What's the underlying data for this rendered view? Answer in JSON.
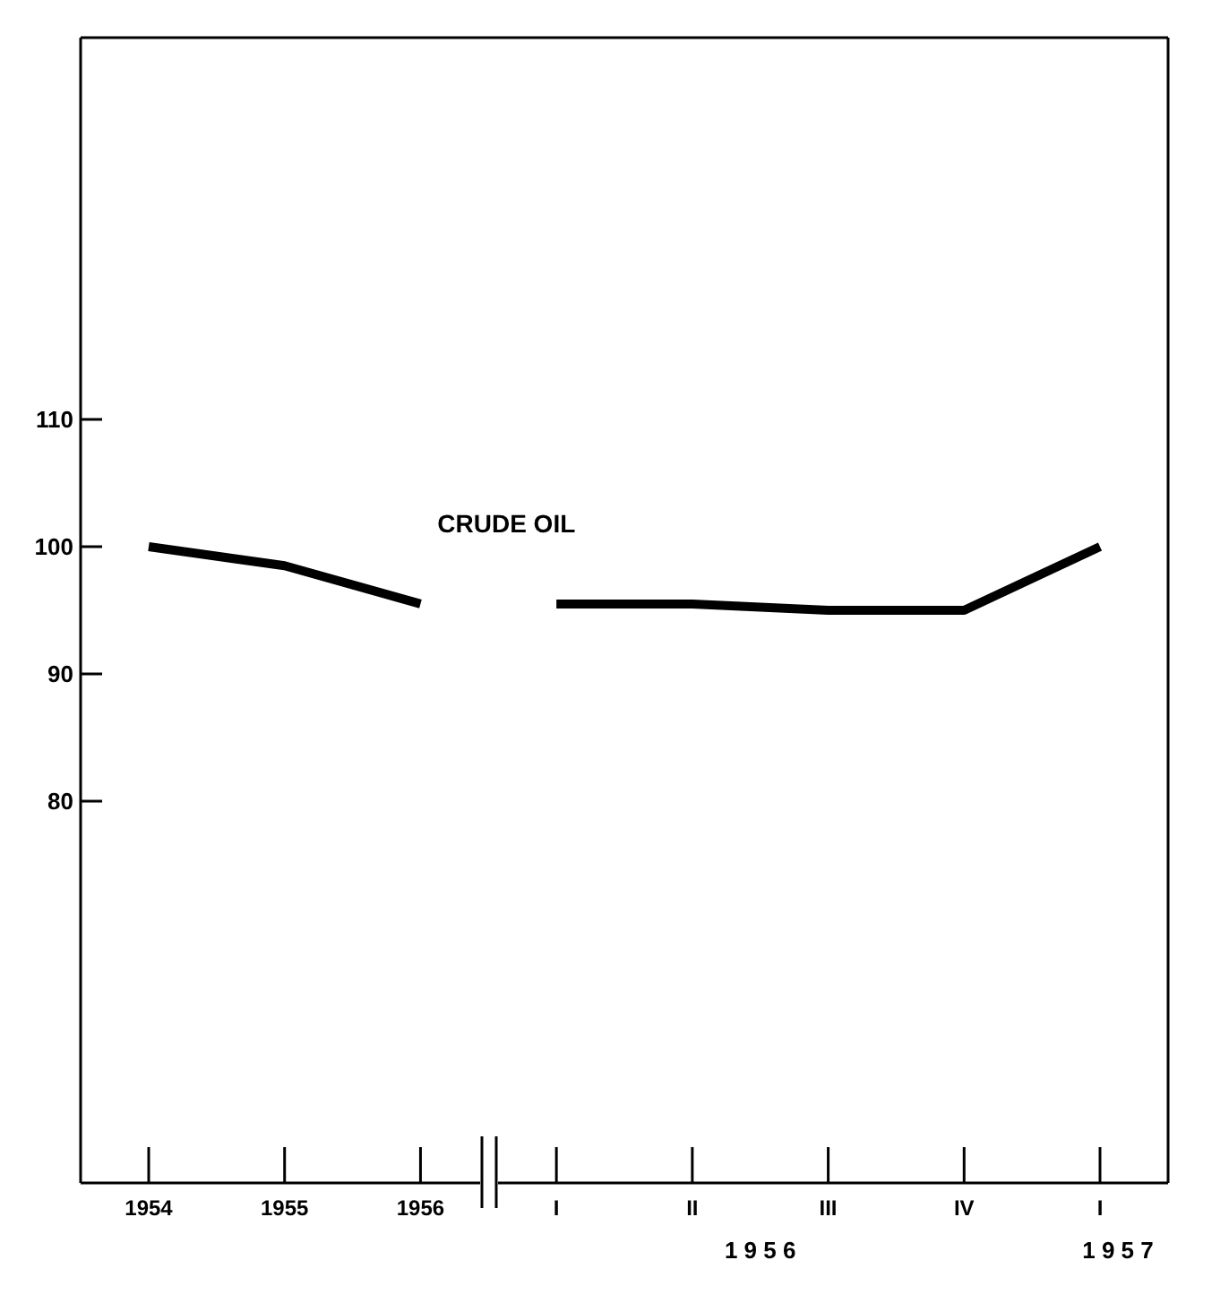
{
  "chart_data": {
    "type": "line",
    "categories": [
      "1954",
      "1955",
      "1956",
      "I",
      "II",
      "III",
      "IV",
      "I"
    ],
    "series": [
      {
        "color": "#000000",
        "values": [
          100,
          98.5,
          95.5,
          null,
          null,
          null,
          null,
          null
        ]
      },
      {
        "color": "#000000",
        "values": [
          null,
          null,
          null,
          95.5,
          95.5,
          95,
          95,
          100
        ]
      }
    ],
    "ylim": [
      50,
      140
    ],
    "yticks": [
      80,
      90,
      100,
      110
    ],
    "grid": false,
    "marker": "none",
    "line_style": "solid",
    "annotations": [
      "CRUDE OIL",
      "1 9 5 6",
      "1 9 5 7"
    ]
  }
}
